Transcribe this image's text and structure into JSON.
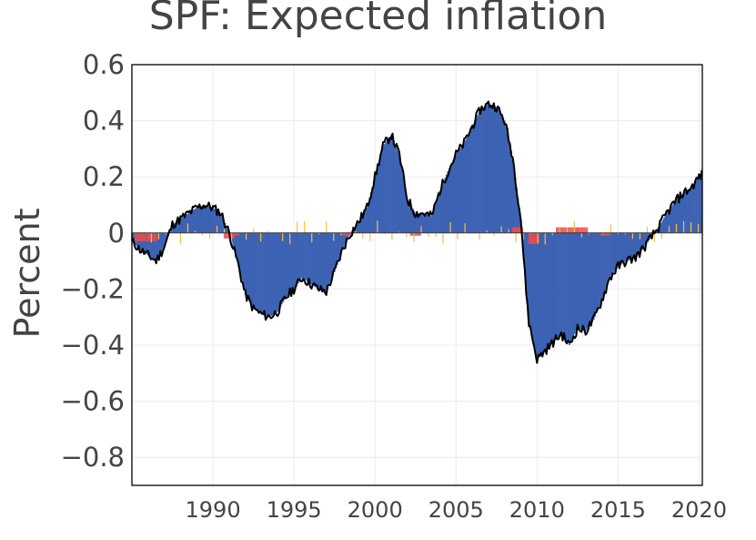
{
  "chart_data": {
    "type": "bar",
    "title": "SPF: Expected inflation",
    "xlabel": "",
    "ylabel": "Percent",
    "xlim": [
      1985,
      2020.2
    ],
    "ylim": [
      -0.9,
      0.6
    ],
    "xticks": [
      1990,
      1995,
      2000,
      2005,
      2010,
      2015,
      2020
    ],
    "xtick_labels": [
      "1990",
      "1995",
      "2000",
      "2005",
      "2010",
      "2015",
      "2020"
    ],
    "yticks": [
      0.6,
      0.4,
      0.2,
      0,
      -0.2,
      -0.4,
      -0.6,
      -0.8
    ],
    "ytick_labels": [
      "0.6",
      "0.4",
      "0.2",
      "0",
      "−0.2",
      "−0.4",
      "−0.6",
      "−0.8"
    ],
    "grid": true,
    "legend": "none",
    "colors": {
      "main": "#3d62b3",
      "secondary": "#ee4b4b",
      "noise": "#f6bf3a",
      "line": "#000000"
    },
    "line_series": {
      "x": [
        1985.0,
        1985.5,
        1986.0,
        1986.5,
        1987.0,
        1987.5,
        1988.0,
        1988.5,
        1989.0,
        1989.5,
        1990.0,
        1990.5,
        1991.0,
        1991.5,
        1992.0,
        1992.5,
        1993.0,
        1993.5,
        1994.0,
        1994.5,
        1995.0,
        1995.5,
        1996.0,
        1996.5,
        1997.0,
        1997.5,
        1998.0,
        1998.5,
        1999.0,
        1999.5,
        2000.0,
        2000.5,
        2001.0,
        2001.5,
        2002.0,
        2002.5,
        2003.0,
        2003.5,
        2004.0,
        2004.5,
        2005.0,
        2005.5,
        2006.0,
        2006.5,
        2007.0,
        2007.5,
        2008.0,
        2008.5,
        2009.0,
        2009.25,
        2009.5,
        2010.0,
        2010.5,
        2011.0,
        2011.5,
        2012.0,
        2012.5,
        2013.0,
        2013.5,
        2014.0,
        2014.5,
        2015.0,
        2015.5,
        2016.0,
        2016.5,
        2017.0,
        2017.5,
        2018.0,
        2018.5,
        2019.0,
        2019.5,
        2020.0,
        2020.2
      ],
      "y": [
        -0.03,
        -0.06,
        -0.08,
        -0.1,
        -0.05,
        0.03,
        0.05,
        0.07,
        0.09,
        0.1,
        0.09,
        0.07,
        0.0,
        -0.1,
        -0.22,
        -0.27,
        -0.29,
        -0.3,
        -0.28,
        -0.23,
        -0.2,
        -0.16,
        -0.18,
        -0.2,
        -0.21,
        -0.14,
        -0.06,
        0.0,
        0.04,
        0.09,
        0.2,
        0.31,
        0.35,
        0.28,
        0.12,
        0.07,
        0.07,
        0.06,
        0.15,
        0.22,
        0.28,
        0.32,
        0.38,
        0.44,
        0.46,
        0.45,
        0.4,
        0.27,
        0.05,
        -0.15,
        -0.32,
        -0.45,
        -0.42,
        -0.39,
        -0.36,
        -0.4,
        -0.34,
        -0.35,
        -0.31,
        -0.24,
        -0.16,
        -0.12,
        -0.1,
        -0.09,
        -0.06,
        -0.02,
        0.02,
        0.07,
        0.11,
        0.14,
        0.16,
        0.2,
        0.21
      ]
    },
    "secondary_series": {
      "x": [
        1985.5,
        1986.2,
        1991.0,
        1991.3,
        1998.2,
        2002.5,
        2008.8,
        2009.8,
        2011.5,
        2012.2,
        2012.8,
        2014.2
      ],
      "y": [
        -0.03,
        -0.03,
        -0.02,
        -0.01,
        -0.01,
        -0.01,
        0.02,
        -0.04,
        0.02,
        0.02,
        0.02,
        -0.01
      ]
    }
  }
}
